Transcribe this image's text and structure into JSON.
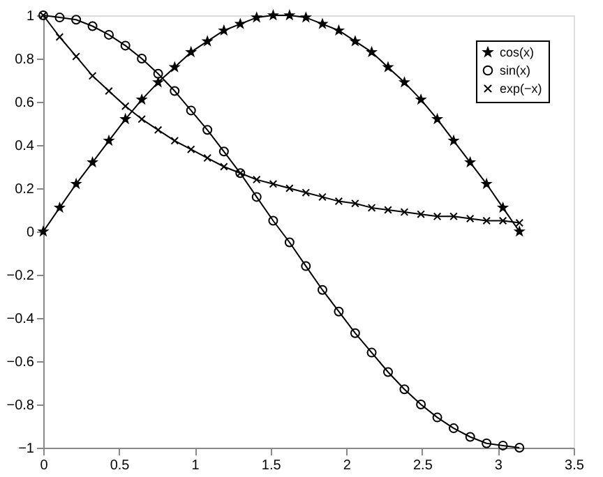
{
  "chart_data": {
    "type": "line",
    "x": [
      0,
      0.108,
      0.217,
      0.325,
      0.433,
      0.542,
      0.65,
      0.758,
      0.867,
      0.975,
      1.083,
      1.192,
      1.3,
      1.408,
      1.517,
      1.625,
      1.733,
      1.842,
      1.95,
      2.058,
      2.167,
      2.275,
      2.383,
      2.492,
      2.6,
      2.708,
      2.817,
      2.925,
      3.033,
      3.142
    ],
    "series": [
      {
        "name": "cos(x)",
        "color": "#000000",
        "marker": "star",
        "values": [
          0,
          0.11,
          0.22,
          0.32,
          0.42,
          0.52,
          0.61,
          0.69,
          0.76,
          0.83,
          0.88,
          0.93,
          0.96,
          0.99,
          1.0,
          1.0,
          0.99,
          0.96,
          0.93,
          0.88,
          0.83,
          0.76,
          0.69,
          0.61,
          0.52,
          0.42,
          0.32,
          0.22,
          0.11,
          0
        ]
      },
      {
        "name": "sin(x)",
        "color": "#000000",
        "marker": "circle",
        "values": [
          1,
          0.99,
          0.98,
          0.95,
          0.91,
          0.86,
          0.8,
          0.73,
          0.65,
          0.56,
          0.47,
          0.37,
          0.27,
          0.16,
          0.05,
          -0.05,
          -0.16,
          -0.27,
          -0.37,
          -0.47,
          -0.56,
          -0.65,
          -0.73,
          -0.8,
          -0.86,
          -0.91,
          -0.95,
          -0.98,
          -0.99,
          -1
        ]
      },
      {
        "name": "exp(−x)",
        "color": "#000000",
        "marker": "cross",
        "values": [
          1,
          0.9,
          0.81,
          0.72,
          0.65,
          0.58,
          0.52,
          0.47,
          0.42,
          0.38,
          0.34,
          0.3,
          0.27,
          0.24,
          0.22,
          0.2,
          0.18,
          0.16,
          0.14,
          0.13,
          0.11,
          0.1,
          0.09,
          0.08,
          0.07,
          0.07,
          0.06,
          0.05,
          0.05,
          0.04
        ]
      }
    ],
    "xlim": [
      0,
      3.5
    ],
    "xticks": [
      0,
      0.5,
      1,
      1.5,
      2,
      2.5,
      3,
      3.5
    ],
    "ylim": [
      -1,
      1
    ],
    "yticks": [
      -1,
      -0.8,
      -0.6,
      -0.4,
      -0.2,
      0,
      0.2,
      0.4,
      0.6,
      0.8,
      1
    ],
    "grid": false,
    "legend": "top right",
    "line_style": "solid"
  }
}
